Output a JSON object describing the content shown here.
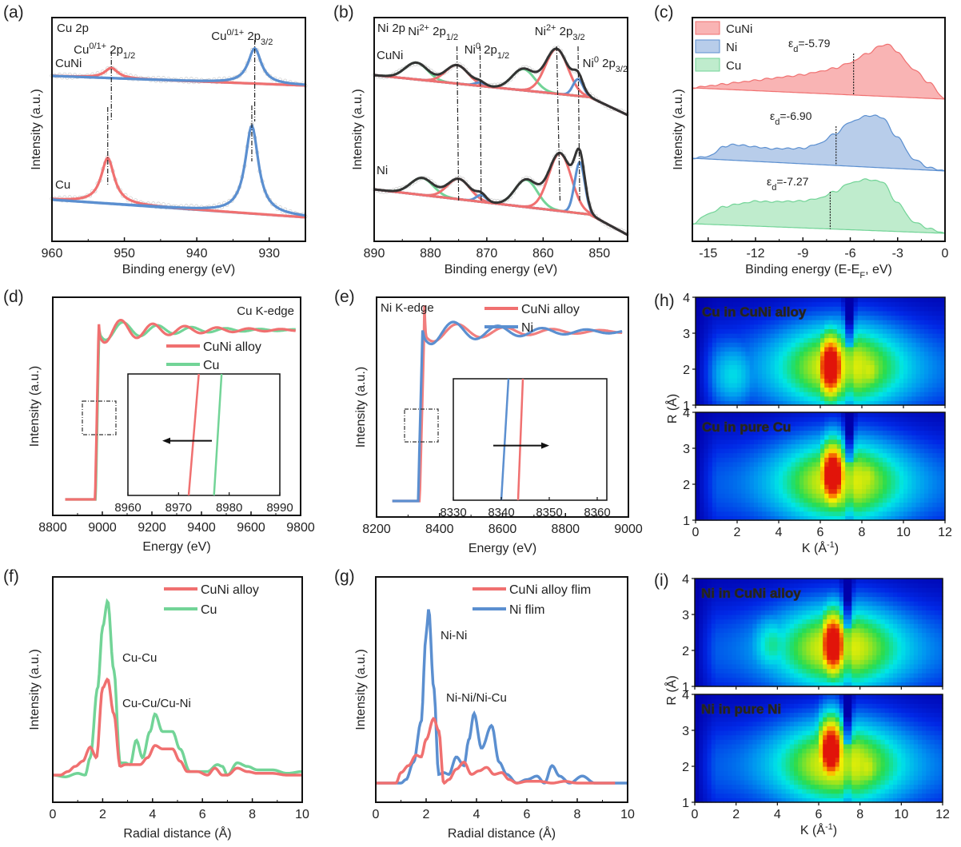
{
  "colors": {
    "red": "#f07070",
    "blue": "#5b8fd0",
    "green": "#72d497",
    "black": "#333333",
    "redtext": "#e84848",
    "bluetext": "#4c86cc",
    "greentext": "#5cc98a"
  },
  "chart_data": [
    {
      "id": "a",
      "panel_label": "(a)",
      "type": "line",
      "title": "Cu 2p",
      "xlabel": "Binding energy (eV)",
      "ylabel": "Intensity (a.u.)",
      "xlim": [
        960,
        925
      ],
      "xticks": [
        960,
        950,
        940,
        930
      ],
      "series_labels": [
        "CuNi",
        "Cu"
      ],
      "annotations": [
        {
          "text": "Cu",
          "sup": "0/1+",
          "tail": " 2p",
          "sub": "1/2",
          "x": 952.0
        },
        {
          "text": "Cu",
          "sup": "0/1+",
          "tail": " 2p",
          "sub": "3/2",
          "x": 932.0
        }
      ],
      "peaks": [
        {
          "sample": "CuNi",
          "component": "2p1/2",
          "center": 951.8,
          "height": 0.16,
          "color": "red"
        },
        {
          "sample": "CuNi",
          "component": "2p3/2",
          "center": 932.0,
          "height": 0.55,
          "color": "blue"
        },
        {
          "sample": "Cu",
          "component": "2p1/2",
          "center": 952.3,
          "height": 0.52,
          "color": "red"
        },
        {
          "sample": "Cu",
          "component": "2p3/2",
          "center": 932.4,
          "height": 1.0,
          "color": "blue"
        }
      ]
    },
    {
      "id": "b",
      "panel_label": "(b)",
      "type": "line",
      "title": "Ni 2p",
      "xlabel": "Binding energy (eV)",
      "ylabel": "Intensity (a.u.)",
      "xlim": [
        890,
        845
      ],
      "xticks": [
        890,
        880,
        870,
        860,
        850
      ],
      "series_labels": [
        "CuNi",
        "Ni"
      ],
      "annotations": [
        {
          "text": "Ni",
          "sup": "2+",
          "tail": " 2p",
          "sub": "1/2",
          "color": "redtext"
        },
        {
          "text": "Ni",
          "sup": "0",
          "tail": " 2p",
          "sub": "1/2",
          "color": "bluetext"
        },
        {
          "text": "Ni",
          "sup": "2+",
          "tail": " 2p",
          "sub": "3/2",
          "color": "redtext"
        },
        {
          "text": "Ni",
          "sup": "0",
          "tail": " 2p",
          "sub": "3/2",
          "color": "bluetext"
        }
      ],
      "peaks": [
        {
          "sample": "CuNi",
          "component": "satellite",
          "center": 882.5,
          "height": 0.3,
          "color": "green"
        },
        {
          "sample": "CuNi",
          "component": "Ni2+ 2p1/2",
          "center": 875.3,
          "height": 0.33,
          "color": "red"
        },
        {
          "sample": "CuNi",
          "component": "Ni0 2p1/2",
          "center": 871.2,
          "height": 0.06,
          "color": "blue"
        },
        {
          "sample": "CuNi",
          "component": "satellite",
          "center": 863.5,
          "height": 0.38,
          "color": "green"
        },
        {
          "sample": "CuNi",
          "component": "Ni2+ 2p3/2",
          "center": 857.6,
          "height": 0.8,
          "color": "red"
        },
        {
          "sample": "CuNi",
          "component": "Ni0 2p3/2",
          "center": 853.8,
          "height": 0.3,
          "color": "blue"
        },
        {
          "sample": "Ni",
          "component": "satellite",
          "center": 881.5,
          "height": 0.25,
          "color": "green"
        },
        {
          "sample": "Ni",
          "component": "Ni2+ 2p1/2",
          "center": 875.0,
          "height": 0.3,
          "color": "red"
        },
        {
          "sample": "Ni",
          "component": "Ni0 2p1/2",
          "center": 871.0,
          "height": 0.1,
          "color": "blue"
        },
        {
          "sample": "Ni",
          "component": "satellite",
          "center": 863.0,
          "height": 0.4,
          "color": "green"
        },
        {
          "sample": "Ni",
          "component": "Ni2+ 2p3/2",
          "center": 857.0,
          "height": 0.85,
          "color": "red"
        },
        {
          "sample": "Ni",
          "component": "Ni0 2p3/2",
          "center": 853.5,
          "height": 0.75,
          "color": "blue"
        }
      ]
    },
    {
      "id": "c",
      "panel_label": "(c)",
      "type": "area",
      "xlabel": "Binding energy (E-E",
      "xlabel_sub": "F",
      "xlabel_tail": ", eV)",
      "ylabel": "Intensity (a.u.)",
      "xlim": [
        -16,
        0
      ],
      "xticks": [
        -15,
        -12,
        -9,
        -6,
        -3,
        0
      ],
      "legend": [
        {
          "name": "CuNi",
          "color": "red"
        },
        {
          "name": "Ni",
          "color": "blue"
        },
        {
          "name": "Cu",
          "color": "green"
        }
      ],
      "series": [
        {
          "name": "CuNi",
          "color": "red",
          "d_band_center": -5.79,
          "label": "=-5.79",
          "x": [
            -16,
            -15,
            -14,
            -13,
            -12,
            -11,
            -10,
            -9,
            -8,
            -7,
            -6,
            -5,
            -4,
            -3.5,
            -3,
            -2,
            -1,
            0
          ],
          "y": [
            0.0,
            0.05,
            0.1,
            0.15,
            0.2,
            0.25,
            0.3,
            0.35,
            0.42,
            0.5,
            0.62,
            0.8,
            0.98,
            1.0,
            0.85,
            0.55,
            0.3,
            0.0
          ]
        },
        {
          "name": "Ni",
          "color": "blue",
          "d_band_center": -6.9,
          "label": "=-6.90",
          "x": [
            -16,
            -15,
            -14,
            -13.5,
            -13,
            -12,
            -11,
            -10,
            -9,
            -8,
            -7,
            -6,
            -5,
            -4.5,
            -4,
            -3,
            -2,
            -1,
            0
          ],
          "y": [
            0.0,
            0.05,
            0.25,
            0.3,
            0.3,
            0.28,
            0.26,
            0.28,
            0.3,
            0.4,
            0.6,
            0.85,
            0.98,
            1.0,
            0.97,
            0.6,
            0.2,
            0.05,
            0.0
          ]
        },
        {
          "name": "Cu",
          "color": "green",
          "d_band_center": -7.27,
          "label": "=-7.27",
          "x": [
            -16,
            -15,
            -14,
            -13,
            -12,
            -11,
            -10,
            -9,
            -8,
            -7,
            -6,
            -5,
            -4,
            -3,
            -2,
            -1,
            0
          ],
          "y": [
            0.0,
            0.2,
            0.35,
            0.42,
            0.48,
            0.48,
            0.5,
            0.52,
            0.58,
            0.72,
            0.9,
            0.98,
            0.95,
            0.55,
            0.2,
            0.08,
            0.0
          ]
        }
      ]
    },
    {
      "id": "d",
      "panel_label": "(d)",
      "type": "line",
      "title": "Cu K-edge",
      "xlabel": "Energy (eV)",
      "ylabel": "Intensity (a.u.)",
      "xlim": [
        8800,
        9800
      ],
      "xticks": [
        8800,
        9000,
        9200,
        9400,
        9600,
        9800
      ],
      "legend": [
        {
          "name": "CuNi alloy",
          "color": "red"
        },
        {
          "name": "Cu",
          "color": "green"
        }
      ],
      "edge": {
        "CuNi alloy": 8979,
        "Cu": 8981
      },
      "inset": {
        "xlim": [
          8960,
          8990
        ],
        "xticks": [
          8960,
          8970,
          8980,
          8990
        ],
        "edge_bottom": {
          "CuNi alloy": 8972,
          "Cu": 8977
        },
        "edge_top": {
          "CuNi alloy": 8974,
          "Cu": 8978.5
        },
        "arrow": "left"
      }
    },
    {
      "id": "e",
      "panel_label": "(e)",
      "type": "line",
      "title": "Ni K-edge",
      "xlabel": "Energy (eV)",
      "ylabel": "Intensity (a.u.)",
      "xlim": [
        8200,
        9000
      ],
      "xticks": [
        8200,
        8400,
        8600,
        8800,
        9000
      ],
      "legend": [
        {
          "name": "CuNi alloy",
          "color": "red"
        },
        {
          "name": "Ni",
          "color": "blue"
        }
      ],
      "edge": {
        "CuNi alloy": 8345,
        "Ni": 8340
      },
      "inset": {
        "xlim": [
          8330,
          8362
        ],
        "xticks": [
          8330,
          8340,
          8350,
          8360
        ],
        "edge_bottom": {
          "Ni": 8340,
          "CuNi alloy": 8343.5
        },
        "edge_top": {
          "Ni": 8341.5,
          "CuNi alloy": 8344.5
        },
        "arrow": "right"
      }
    },
    {
      "id": "f",
      "panel_label": "(f)",
      "type": "line",
      "xlabel": "Radial distance (Å)",
      "ylabel": "Intensity (a.u.)",
      "xlim": [
        0,
        10
      ],
      "xticks": [
        0,
        2,
        4,
        6,
        8,
        10
      ],
      "legend": [
        {
          "name": "CuNi alloy",
          "color": "red"
        },
        {
          "name": "Cu",
          "color": "green"
        }
      ],
      "annotations": [
        {
          "text": "Cu-Cu",
          "color": "greentext"
        },
        {
          "text": "Cu-Cu/Cu-Ni",
          "color": "redtext"
        }
      ],
      "series": [
        {
          "name": "CuNi alloy",
          "color": "red",
          "x": [
            0,
            0.3,
            0.6,
            0.9,
            1.2,
            1.5,
            1.75,
            2.0,
            2.2,
            2.45,
            2.7,
            2.9,
            3.2,
            3.5,
            3.8,
            4.1,
            4.4,
            4.8,
            5.1,
            5.4,
            5.8,
            6.2,
            6.5,
            6.8,
            7.0,
            7.4,
            7.8,
            8.2,
            8.8,
            9.4,
            10
          ],
          "y": [
            0.0,
            0.0,
            0.02,
            0.05,
            0.08,
            0.16,
            0.1,
            0.5,
            0.55,
            0.35,
            0.05,
            0.06,
            0.06,
            0.06,
            0.1,
            0.17,
            0.15,
            0.15,
            0.08,
            0.02,
            0.02,
            0.0,
            0.04,
            0.0,
            0.0,
            0.04,
            0.02,
            0.01,
            0.01,
            0.0,
            0.0
          ]
        },
        {
          "name": "Cu",
          "color": "green",
          "x": [
            0,
            0.5,
            1.0,
            1.3,
            1.5,
            1.8,
            2.0,
            2.2,
            2.45,
            2.7,
            2.9,
            3.1,
            3.35,
            3.6,
            3.9,
            4.1,
            4.4,
            4.8,
            5.1,
            5.5,
            5.8,
            6.2,
            6.6,
            6.8,
            7.0,
            7.4,
            7.8,
            8.2,
            8.8,
            9.4,
            10
          ],
          "y": [
            0.0,
            -0.01,
            0.01,
            0.0,
            0.1,
            0.5,
            0.85,
            1.0,
            0.6,
            0.07,
            0.07,
            0.06,
            0.2,
            0.1,
            0.25,
            0.35,
            0.25,
            0.25,
            0.15,
            0.02,
            0.02,
            0.02,
            0.06,
            0.05,
            0.0,
            0.07,
            0.05,
            0.03,
            0.03,
            0.01,
            0.02
          ]
        }
      ]
    },
    {
      "id": "g",
      "panel_label": "(g)",
      "type": "line",
      "xlabel": "Radial distance (Å)",
      "ylabel": "Intensity (a.u.)",
      "xlim": [
        0,
        10
      ],
      "xticks": [
        0,
        2,
        4,
        6,
        8,
        10
      ],
      "legend": [
        {
          "name": "CuNi alloy flim",
          "color": "red"
        },
        {
          "name": "Ni flim",
          "color": "blue"
        }
      ],
      "annotations": [
        {
          "text": "Ni-Ni",
          "color": "bluetext"
        },
        {
          "text": "Ni-Ni/Ni-Cu",
          "color": "redtext"
        }
      ],
      "series": [
        {
          "name": "CuNi alloy flim",
          "color": "red",
          "x": [
            0,
            0.5,
            0.8,
            1.0,
            1.3,
            1.6,
            1.8,
            2.0,
            2.3,
            2.5,
            2.7,
            2.9,
            3.2,
            3.5,
            3.8,
            4.1,
            4.4,
            4.7,
            5.0,
            5.3,
            5.6,
            6.0,
            6.5,
            7.0,
            7.5,
            8.0,
            8.5,
            9.0,
            9.5
          ],
          "y": [
            0.0,
            0.0,
            0.0,
            0.06,
            0.1,
            0.16,
            0.15,
            0.25,
            0.37,
            0.3,
            0.0,
            0.02,
            0.08,
            0.12,
            0.05,
            0.07,
            0.09,
            0.05,
            0.06,
            0.02,
            0.0,
            0.01,
            0.01,
            0.0,
            0.01,
            0.0,
            0.0,
            0.0,
            0.0
          ]
        },
        {
          "name": "Ni flim",
          "color": "blue",
          "x": [
            0,
            0.4,
            0.7,
            1.0,
            1.2,
            1.5,
            1.8,
            2.0,
            2.1,
            2.3,
            2.5,
            2.7,
            2.9,
            3.2,
            3.5,
            3.7,
            3.9,
            4.2,
            4.6,
            4.9,
            5.2,
            5.6,
            6.0,
            6.4,
            6.7,
            7.0,
            7.3,
            7.7,
            8.2,
            8.7,
            9.2,
            9.6,
            10
          ],
          "y": [
            0.0,
            0.0,
            0.0,
            0.0,
            0.02,
            0.12,
            0.35,
            0.85,
            1.0,
            0.55,
            0.05,
            0.06,
            0.05,
            0.15,
            0.1,
            0.25,
            0.4,
            0.2,
            0.33,
            0.12,
            0.05,
            0.0,
            0.02,
            0.04,
            0.0,
            0.1,
            0.04,
            0.0,
            0.04,
            0.0,
            0.0,
            0.0,
            0.0
          ]
        }
      ]
    },
    {
      "id": "h",
      "panel_label": "(h)",
      "type": "heatmap",
      "xlabel": "K (Å",
      "xlabel_sup": "-1",
      "xlabel_tail": ")",
      "ylabel": "R (Å)",
      "xlim": [
        0,
        12
      ],
      "ylim": [
        1,
        4
      ],
      "xticks": [
        0,
        2,
        4,
        6,
        8,
        10,
        12
      ],
      "yticks": [
        1,
        2,
        3,
        4
      ],
      "subplots": [
        {
          "label": "Cu in CuNi alloy",
          "max_k": 6.5,
          "max_r": 2.1,
          "secondary": [
            {
              "k": 8.3,
              "r": 2.0,
              "amp": 0.6
            },
            {
              "k": 1.8,
              "r": 1.8,
              "amp": 0.25
            }
          ]
        },
        {
          "label": "Cu in pure Cu",
          "max_k": 6.6,
          "max_r": 2.3,
          "secondary": [
            {
              "k": 8.2,
              "r": 2.2,
              "amp": 0.6
            }
          ]
        }
      ]
    },
    {
      "id": "i",
      "panel_label": "(i)",
      "type": "heatmap",
      "xlabel": "K (Å",
      "xlabel_sup": "-1",
      "xlabel_tail": ")",
      "ylabel": "R (Å)",
      "xlim": [
        0,
        12
      ],
      "ylim": [
        1,
        4
      ],
      "xticks": [
        0,
        2,
        4,
        6,
        8,
        10,
        12
      ],
      "yticks": [
        1,
        2,
        3,
        4
      ],
      "subplots": [
        {
          "label": "Ni in CuNi alloy",
          "max_k": 6.7,
          "max_r": 2.2,
          "secondary": [
            {
              "k": 8.0,
              "r": 2.2,
              "amp": 0.45
            },
            {
              "k": 3.8,
              "r": 2.2,
              "amp": 0.35
            }
          ]
        },
        {
          "label": "Ni in pure Ni",
          "max_k": 6.6,
          "max_r": 2.5,
          "secondary": [
            {
              "k": 8.3,
              "r": 2.0,
              "amp": 0.6
            }
          ]
        }
      ]
    }
  ]
}
